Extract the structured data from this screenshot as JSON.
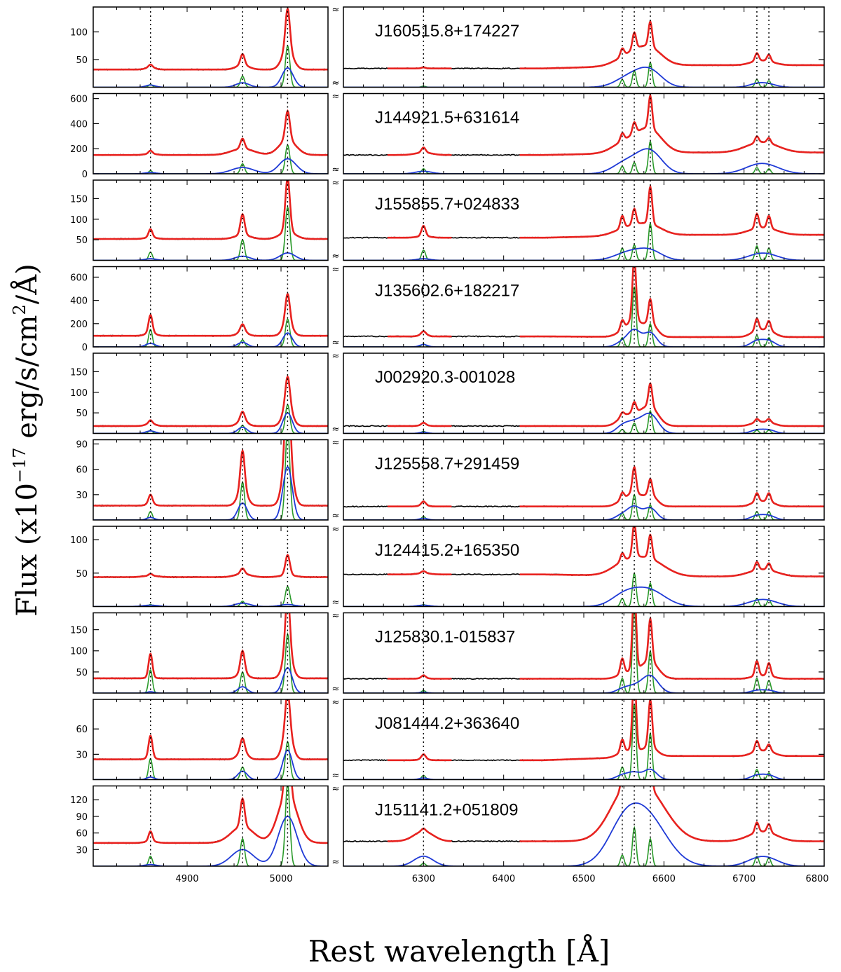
{
  "chart_data": {
    "type": "line",
    "title": "",
    "xlabel": "Rest wavelength [Å]",
    "ylabel": "Flux (x10^-17 erg/s/cm^2/Å)",
    "ylabel_parts": {
      "prefix": "Flux (x10",
      "exp": "−17",
      "mid": " erg/s/cm",
      "exp2": "2",
      "suffix": "/Å)"
    },
    "axis_break_symbol": "≈",
    "left_xlim": [
      4800,
      5050
    ],
    "right_xlim": [
      6200,
      6800
    ],
    "left_ticks": [
      4900,
      5000
    ],
    "right_ticks": [
      6300,
      6400,
      6500,
      6600,
      6700,
      6800
    ],
    "series_colors": {
      "observed": "#000000",
      "model": "#e8221f",
      "narrow": "#2a9a2a",
      "broad": "#1f3ad6",
      "line_markers": "#000000"
    },
    "line_markers": [
      4861,
      4959,
      5007,
      6300,
      6548,
      6563,
      6583,
      6716,
      6731
    ],
    "panels": [
      {
        "name": "J160515.8+174227",
        "ylim": [
          0,
          145
        ],
        "yticks": [
          50,
          100
        ],
        "continuum": [
          32,
          34,
          40
        ],
        "narrow": [
          5,
          20,
          75,
          2,
          14,
          30,
          45,
          14,
          12
        ],
        "broad": [
          4,
          8,
          35,
          0,
          8,
          14,
          28,
          6,
          5
        ],
        "broad_width": [
          5,
          7,
          6,
          5,
          15,
          15,
          15,
          10,
          10
        ]
      },
      {
        "name": "J144921.5+631614",
        "ylim": [
          0,
          640
        ],
        "yticks": [
          0,
          200,
          400,
          600
        ],
        "continuum": [
          150,
          150,
          170
        ],
        "narrow": [
          25,
          80,
          230,
          40,
          60,
          90,
          260,
          50,
          40
        ],
        "broad": [
          10,
          50,
          120,
          20,
          60,
          50,
          170,
          50,
          40
        ],
        "broad_width": [
          6,
          12,
          9,
          10,
          15,
          15,
          15,
          18,
          18
        ]
      },
      {
        "name": "J155855.7+024833",
        "ylim": [
          0,
          195
        ],
        "yticks": [
          50,
          100,
          150
        ],
        "continuum": [
          52,
          55,
          62
        ],
        "narrow": [
          20,
          50,
          130,
          25,
          30,
          38,
          90,
          35,
          30
        ],
        "broad": [
          4,
          10,
          18,
          4,
          10,
          12,
          22,
          10,
          10
        ],
        "broad_width": [
          6,
          8,
          8,
          8,
          15,
          15,
          15,
          15,
          15
        ]
      },
      {
        "name": "J135602.6+182217",
        "ylim": [
          0,
          690
        ],
        "yticks": [
          0,
          200,
          400,
          600
        ],
        "continuum": [
          95,
          90,
          85
        ],
        "narrow": [
          150,
          60,
          240,
          25,
          80,
          520,
          200,
          100,
          80
        ],
        "broad": [
          30,
          40,
          120,
          20,
          40,
          140,
          120,
          50,
          50
        ],
        "broad_width": [
          5,
          5,
          5,
          5,
          8,
          8,
          8,
          8,
          8
        ]
      },
      {
        "name": "J002920.3-001028",
        "ylim": [
          0,
          195
        ],
        "yticks": [
          50,
          100,
          150
        ],
        "continuum": [
          18,
          18,
          18
        ],
        "narrow": [
          8,
          20,
          70,
          5,
          10,
          25,
          55,
          8,
          8
        ],
        "broad": [
          6,
          15,
          50,
          3,
          15,
          25,
          45,
          8,
          8
        ],
        "broad_width": [
          5,
          5,
          5,
          5,
          8,
          10,
          10,
          8,
          8
        ]
      },
      {
        "name": "J125558.7+291459",
        "ylim": [
          0,
          95
        ],
        "yticks": [
          30,
          60,
          90
        ],
        "continuum": [
          17,
          16,
          16
        ],
        "narrow": [
          10,
          45,
          110,
          4,
          8,
          30,
          18,
          10,
          10
        ],
        "broad": [
          3,
          20,
          63,
          2,
          6,
          15,
          14,
          5,
          5
        ],
        "broad_width": [
          4,
          5,
          5,
          5,
          8,
          8,
          8,
          8,
          8
        ]
      },
      {
        "name": "J124415.2+165350",
        "ylim": [
          0,
          120
        ],
        "yticks": [
          50,
          100
        ],
        "continuum": [
          44,
          48,
          45
        ],
        "narrow": [
          3,
          8,
          30,
          3,
          12,
          50,
          35,
          12,
          10
        ],
        "broad": [
          2,
          5,
          3,
          2,
          10,
          10,
          20,
          6,
          6
        ],
        "broad_width": [
          8,
          8,
          8,
          8,
          15,
          20,
          20,
          15,
          15
        ]
      },
      {
        "name": "J125830.1-015837",
        "ylim": [
          0,
          190
        ],
        "yticks": [
          50,
          100,
          150
        ],
        "continuum": [
          35,
          34,
          34
        ],
        "narrow": [
          55,
          50,
          140,
          6,
          35,
          200,
          100,
          35,
          30
        ],
        "broad": [
          3,
          15,
          60,
          2,
          8,
          15,
          40,
          6,
          6
        ],
        "broad_width": [
          4,
          5,
          5,
          5,
          8,
          10,
          10,
          8,
          8
        ]
      },
      {
        "name": "J081444.2+363640",
        "ylim": [
          0,
          95
        ],
        "yticks": [
          30,
          60
        ],
        "continuum": [
          24,
          23,
          28
        ],
        "narrow": [
          25,
          15,
          45,
          5,
          15,
          90,
          55,
          12,
          8
        ],
        "broad": [
          3,
          10,
          35,
          2,
          5,
          8,
          12,
          5,
          5
        ],
        "broad_width": [
          4,
          5,
          5,
          5,
          8,
          8,
          8,
          8,
          8
        ]
      },
      {
        "name": "J151141.2+051809",
        "ylim": [
          0,
          145
        ],
        "yticks": [
          30,
          60,
          90,
          120
        ],
        "continuum": [
          42,
          45,
          45
        ],
        "narrow": [
          18,
          50,
          150,
          5,
          20,
          70,
          50,
          18,
          15
        ],
        "broad": [
          3,
          30,
          90,
          18,
          40,
          40,
          60,
          10,
          10
        ],
        "broad_width": [
          6,
          12,
          10,
          12,
          20,
          25,
          25,
          15,
          15
        ]
      }
    ]
  }
}
